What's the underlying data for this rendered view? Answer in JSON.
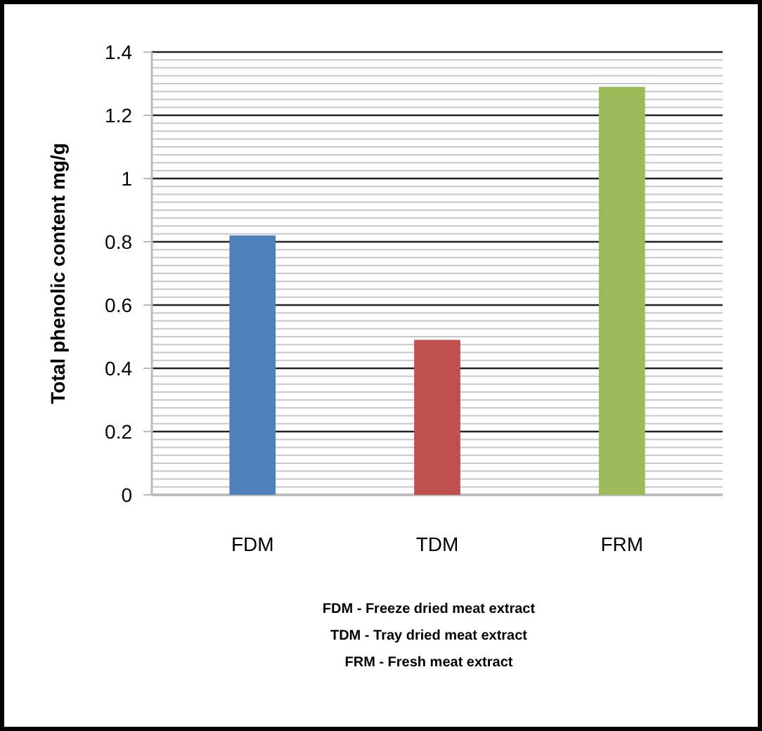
{
  "chart_data": {
    "type": "bar",
    "ylabel": "Total phenolic content mg/g",
    "categories": [
      "FDM",
      "TDM",
      "FRM"
    ],
    "values": [
      0.82,
      0.49,
      1.29
    ],
    "colors": [
      "#4f81bd",
      "#c0504d",
      "#9bbb59"
    ],
    "ylim": [
      0,
      1.4
    ],
    "yticks": [
      0,
      0.2,
      0.4,
      0.6,
      0.8,
      1,
      1.2,
      1.4
    ],
    "grid": "y",
    "annotations": [
      "FDM - Freeze dried meat  extract",
      "TDM - Tray dried meat  extract",
      "FRM - Fresh meat  extract"
    ]
  }
}
